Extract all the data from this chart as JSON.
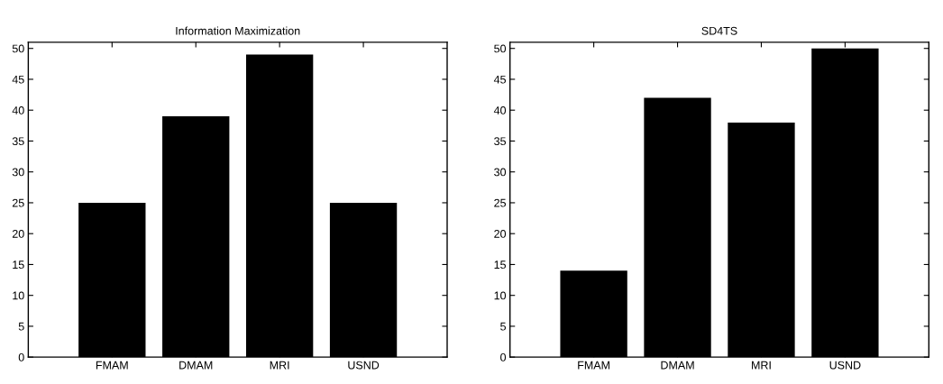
{
  "chart_data": [
    {
      "type": "bar",
      "title": "Information Maximization",
      "categories": [
        "FMAM",
        "DMAM",
        "MRI",
        "USND"
      ],
      "values": [
        25,
        39,
        49,
        25
      ],
      "color": "#000000",
      "ylim": [
        0,
        51
      ],
      "yticks": [
        0,
        5,
        10,
        15,
        20,
        25,
        30,
        35,
        40,
        45,
        50
      ],
      "grid": false
    },
    {
      "type": "bar",
      "title": "SD4TS",
      "categories": [
        "FMAM",
        "DMAM",
        "MRI",
        "USND"
      ],
      "values": [
        14,
        42,
        38,
        50
      ],
      "color": "#000000",
      "ylim": [
        0,
        51
      ],
      "yticks": [
        0,
        5,
        10,
        15,
        20,
        25,
        30,
        35,
        40,
        45,
        50
      ],
      "grid": false
    }
  ]
}
